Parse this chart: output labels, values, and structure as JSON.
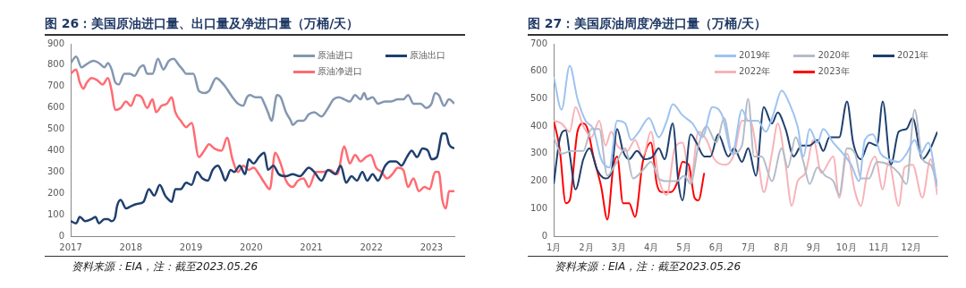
{
  "chart_data": [
    {
      "type": "line",
      "title": "图 26：美国原油进口量、出口量及净进口量（万桶/天）",
      "xlim": [
        2017,
        2023.38
      ],
      "xticks": [
        2017,
        2018,
        2019,
        2020,
        2021,
        2022,
        2023
      ],
      "ylim": [
        0,
        900
      ],
      "yticks": [
        0,
        100,
        200,
        300,
        400,
        500,
        600,
        700,
        800,
        900
      ],
      "grid": false,
      "legend": "top right",
      "annotations": [
        "资料来源：EIA，注：截至2023.05.26"
      ],
      "series": [
        {
          "name": "原油进口",
          "color": "#8497b0",
          "x": [
            2017.0,
            2017.09,
            2017.18,
            2017.24,
            2017.38,
            2017.47,
            2017.56,
            2017.62,
            2017.68,
            2017.74,
            2017.8,
            2017.89,
            2017.98,
            2018.06,
            2018.15,
            2018.21,
            2018.27,
            2018.36,
            2018.45,
            2018.54,
            2018.63,
            2018.71,
            2018.8,
            2018.86,
            2018.92,
            2018.98,
            2019.04,
            2019.13,
            2019.22,
            2019.3,
            2019.42,
            2019.51,
            2019.57,
            2019.69,
            2019.78,
            2019.87,
            2019.93,
            2019.98,
            2020.07,
            2020.16,
            2020.22,
            2020.28,
            2020.34,
            2020.43,
            2020.49,
            2020.58,
            2020.66,
            2020.69,
            2020.78,
            2020.87,
            2020.96,
            2021.05,
            2021.17,
            2021.28,
            2021.37,
            2021.46,
            2021.55,
            2021.64,
            2021.73,
            2021.82,
            2021.88,
            2021.93,
            2022.02,
            2022.11,
            2022.23,
            2022.32,
            2022.44,
            2022.53,
            2022.61,
            2022.7,
            2022.82,
            2022.91,
            2023.0,
            2023.06,
            2023.12,
            2023.21,
            2023.29,
            2023.38
          ],
          "values": [
            810,
            840,
            790,
            800,
            820,
            810,
            790,
            810,
            780,
            720,
            710,
            760,
            760,
            750,
            790,
            800,
            760,
            760,
            830,
            780,
            820,
            830,
            800,
            780,
            760,
            760,
            760,
            680,
            670,
            680,
            740,
            720,
            700,
            650,
            620,
            610,
            650,
            660,
            650,
            650,
            620,
            580,
            540,
            660,
            650,
            580,
            540,
            520,
            540,
            540,
            570,
            580,
            560,
            600,
            640,
            650,
            640,
            630,
            660,
            640,
            670,
            640,
            650,
            620,
            630,
            630,
            640,
            640,
            660,
            620,
            620,
            600,
            620,
            670,
            660,
            610,
            640,
            620
          ]
        },
        {
          "name": "原油出口",
          "color": "#1f3f6e",
          "x": [
            2017.0,
            2017.09,
            2017.15,
            2017.24,
            2017.35,
            2017.41,
            2017.47,
            2017.56,
            2017.62,
            2017.68,
            2017.74,
            2017.77,
            2017.83,
            2017.92,
            2018.0,
            2018.09,
            2018.21,
            2018.3,
            2018.39,
            2018.48,
            2018.57,
            2018.63,
            2018.68,
            2018.74,
            2018.83,
            2018.92,
            2019.01,
            2019.1,
            2019.19,
            2019.28,
            2019.36,
            2019.45,
            2019.51,
            2019.57,
            2019.66,
            2019.72,
            2019.81,
            2019.9,
            2019.96,
            2020.04,
            2020.13,
            2020.22,
            2020.28,
            2020.37,
            2020.46,
            2020.58,
            2020.69,
            2020.81,
            2020.96,
            2021.05,
            2021.17,
            2021.28,
            2021.4,
            2021.49,
            2021.58,
            2021.67,
            2021.76,
            2021.85,
            2021.93,
            2022.02,
            2022.11,
            2022.23,
            2022.32,
            2022.41,
            2022.5,
            2022.59,
            2022.67,
            2022.76,
            2022.85,
            2022.94,
            2023.0,
            2023.09,
            2023.18,
            2023.24,
            2023.29,
            2023.38
          ],
          "values": [
            70,
            60,
            90,
            70,
            80,
            90,
            60,
            80,
            80,
            70,
            90,
            140,
            170,
            130,
            140,
            150,
            160,
            220,
            190,
            240,
            190,
            170,
            160,
            220,
            220,
            250,
            240,
            300,
            270,
            260,
            310,
            330,
            300,
            260,
            310,
            300,
            330,
            290,
            360,
            340,
            370,
            390,
            310,
            330,
            290,
            280,
            290,
            280,
            320,
            300,
            260,
            310,
            290,
            330,
            250,
            280,
            260,
            300,
            260,
            290,
            260,
            330,
            350,
            350,
            330,
            370,
            400,
            370,
            410,
            400,
            360,
            370,
            480,
            480,
            430,
            410
          ]
        },
        {
          "name": "原油净进口",
          "color": "#ff6b72",
          "x": [
            2017.0,
            2017.09,
            2017.15,
            2017.21,
            2017.27,
            2017.35,
            2017.44,
            2017.53,
            2017.62,
            2017.68,
            2017.74,
            2017.83,
            2017.92,
            2018.0,
            2018.09,
            2018.18,
            2018.27,
            2018.36,
            2018.42,
            2018.51,
            2018.6,
            2018.68,
            2018.74,
            2018.83,
            2018.92,
            2019.01,
            2019.13,
            2019.22,
            2019.3,
            2019.39,
            2019.51,
            2019.6,
            2019.69,
            2019.78,
            2019.87,
            2019.96,
            2020.04,
            2020.13,
            2020.22,
            2020.31,
            2020.4,
            2020.49,
            2020.58,
            2020.69,
            2020.78,
            2020.87,
            2020.96,
            2021.08,
            2021.2,
            2021.31,
            2021.43,
            2021.55,
            2021.64,
            2021.73,
            2021.82,
            2021.91,
            2021.99,
            2022.08,
            2022.17,
            2022.26,
            2022.35,
            2022.44,
            2022.53,
            2022.61,
            2022.7,
            2022.79,
            2022.88,
            2022.97,
            2023.06,
            2023.12,
            2023.18,
            2023.24,
            2023.29,
            2023.38
          ],
          "values": [
            760,
            780,
            720,
            690,
            720,
            740,
            730,
            710,
            740,
            680,
            590,
            600,
            630,
            610,
            660,
            650,
            600,
            640,
            580,
            610,
            620,
            650,
            580,
            540,
            510,
            530,
            370,
            400,
            430,
            410,
            400,
            460,
            360,
            300,
            330,
            310,
            320,
            290,
            250,
            220,
            390,
            340,
            260,
            230,
            260,
            270,
            230,
            300,
            300,
            310,
            290,
            420,
            340,
            380,
            350,
            370,
            380,
            320,
            300,
            270,
            290,
            320,
            310,
            230,
            270,
            210,
            230,
            220,
            300,
            300,
            170,
            130,
            210,
            210
          ]
        }
      ]
    },
    {
      "type": "line",
      "title": "图 27：美国原油周度净进口量（万桶/天）",
      "xlim": [
        1,
        12.8
      ],
      "xticks": [
        {
          "value": 1,
          "label": "1月"
        },
        {
          "value": 2,
          "label": "2月"
        },
        {
          "value": 3,
          "label": "3月"
        },
        {
          "value": 4,
          "label": "4月"
        },
        {
          "value": 5,
          "label": "5月"
        },
        {
          "value": 6,
          "label": "6月"
        },
        {
          "value": 7,
          "label": "7月"
        },
        {
          "value": 8,
          "label": "8月"
        },
        {
          "value": 9,
          "label": "9月"
        },
        {
          "value": 10,
          "label": "10月"
        },
        {
          "value": 11,
          "label": "11月"
        },
        {
          "value": 12,
          "label": "12月"
        }
      ],
      "ylim": [
        0,
        700
      ],
      "yticks": [
        0,
        100,
        200,
        300,
        400,
        500,
        600,
        700
      ],
      "grid": false,
      "legend": "top right",
      "annotations": [
        "资料来源：EIA，注：截至2023.05.26"
      ],
      "series": [
        {
          "name": "2019年",
          "color": "#9dc3f0",
          "x": [
            1.0,
            1.24,
            1.49,
            1.73,
            1.98,
            2.22,
            2.46,
            2.71,
            2.95,
            3.2,
            3.38,
            3.62,
            3.93,
            4.23,
            4.48,
            4.66,
            4.96,
            5.27,
            5.57,
            5.88,
            6.18,
            6.49,
            6.79,
            6.98,
            7.28,
            7.52,
            7.77,
            8.01,
            8.26,
            8.5,
            8.68,
            8.87,
            9.11,
            9.29,
            9.6,
            9.9,
            10.15,
            10.39,
            10.57,
            10.82,
            11.06,
            11.3,
            11.61,
            11.85,
            12.1,
            12.28,
            12.52,
            12.8
          ],
          "values": [
            580,
            460,
            620,
            500,
            420,
            390,
            280,
            250,
            420,
            410,
            350,
            380,
            430,
            360,
            420,
            480,
            440,
            410,
            360,
            470,
            440,
            300,
            460,
            420,
            420,
            380,
            450,
            530,
            480,
            400,
            290,
            390,
            340,
            390,
            340,
            300,
            260,
            200,
            350,
            370,
            300,
            280,
            270,
            300,
            350,
            300,
            340,
            180
          ]
        },
        {
          "name": "2020年",
          "color": "#b4bcc8",
          "x": [
            1.0,
            1.24,
            1.55,
            1.91,
            2.16,
            2.4,
            2.65,
            2.89,
            3.2,
            3.44,
            3.74,
            3.99,
            4.23,
            4.48,
            4.78,
            5.02,
            5.21,
            5.45,
            5.7,
            6.0,
            6.24,
            6.49,
            6.79,
            6.98,
            7.16,
            7.4,
            7.71,
            8.01,
            8.2,
            8.44,
            8.68,
            8.87,
            9.11,
            9.35,
            9.6,
            9.78,
            10.02,
            10.27,
            10.45,
            10.7,
            10.94,
            11.3,
            11.61,
            11.85,
            12.1,
            12.34,
            12.59,
            12.8
          ],
          "values": [
            360,
            300,
            310,
            310,
            390,
            390,
            220,
            260,
            320,
            210,
            240,
            270,
            210,
            200,
            200,
            220,
            190,
            330,
            400,
            340,
            430,
            300,
            330,
            500,
            290,
            290,
            200,
            320,
            250,
            360,
            270,
            190,
            250,
            220,
            200,
            150,
            320,
            300,
            210,
            210,
            270,
            260,
            230,
            190,
            460,
            280,
            260,
            190
          ]
        },
        {
          "name": "2021年",
          "color": "#1f3f6e",
          "x": [
            1.0,
            1.18,
            1.37,
            1.49,
            1.67,
            1.91,
            2.1,
            2.34,
            2.59,
            2.77,
            2.95,
            3.13,
            3.32,
            3.56,
            3.8,
            4.05,
            4.23,
            4.41,
            4.66,
            4.84,
            4.96,
            5.21,
            5.39,
            5.63,
            5.82,
            6.06,
            6.37,
            6.55,
            6.79,
            6.98,
            7.22,
            7.46,
            7.71,
            7.89,
            8.13,
            8.38,
            8.62,
            8.87,
            9.11,
            9.29,
            9.48,
            9.78,
            10.02,
            10.21,
            10.45,
            10.7,
            10.94,
            11.12,
            11.37,
            11.61,
            11.85,
            12.04,
            12.34,
            12.59,
            12.8
          ],
          "values": [
            190,
            350,
            385,
            300,
            170,
            280,
            320,
            240,
            210,
            230,
            390,
            310,
            280,
            310,
            280,
            290,
            320,
            280,
            410,
            190,
            130,
            370,
            340,
            290,
            290,
            370,
            290,
            320,
            270,
            320,
            220,
            470,
            410,
            450,
            390,
            290,
            330,
            330,
            350,
            310,
            360,
            360,
            490,
            340,
            280,
            340,
            330,
            490,
            260,
            380,
            390,
            430,
            280,
            320,
            380
          ]
        },
        {
          "name": "2022年",
          "color": "#f7b3b8",
          "x": [
            1.0,
            1.24,
            1.49,
            1.67,
            1.91,
            2.16,
            2.4,
            2.59,
            2.77,
            2.95,
            3.26,
            3.5,
            3.74,
            3.99,
            4.23,
            4.48,
            4.72,
            4.96,
            5.21,
            5.45,
            5.7,
            5.94,
            6.3,
            6.55,
            6.79,
            7.04,
            7.28,
            7.46,
            7.71,
            7.89,
            8.13,
            8.32,
            8.5,
            8.74,
            8.99,
            9.23,
            9.6,
            9.78,
            10.02,
            10.27,
            10.45,
            10.63,
            10.88,
            11.12,
            11.3,
            11.61,
            11.79,
            12.04,
            12.34,
            12.59,
            12.8
          ],
          "values": [
            420,
            410,
            380,
            470,
            400,
            360,
            420,
            330,
            380,
            330,
            310,
            350,
            290,
            380,
            210,
            150,
            320,
            340,
            200,
            380,
            350,
            280,
            260,
            300,
            420,
            420,
            280,
            160,
            300,
            410,
            260,
            110,
            200,
            230,
            350,
            230,
            290,
            140,
            300,
            160,
            110,
            220,
            290,
            170,
            270,
            110,
            250,
            260,
            140,
            280,
            150
          ]
        },
        {
          "name": "2023年",
          "color": "#ff0000",
          "x": [
            1.0,
            1.18,
            1.37,
            1.49,
            1.73,
            1.91,
            2.04,
            2.22,
            2.46,
            2.65,
            2.83,
            2.95,
            3.13,
            3.32,
            3.5,
            3.74,
            3.99,
            4.17,
            4.35,
            4.6,
            4.78,
            4.96,
            5.15,
            5.33,
            5.45,
            5.63
          ],
          "values": [
            420,
            320,
            120,
            130,
            380,
            410,
            390,
            290,
            180,
            60,
            250,
            290,
            120,
            120,
            70,
            270,
            340,
            190,
            160,
            160,
            190,
            270,
            260,
            140,
            130,
            230
          ]
        }
      ]
    }
  ]
}
